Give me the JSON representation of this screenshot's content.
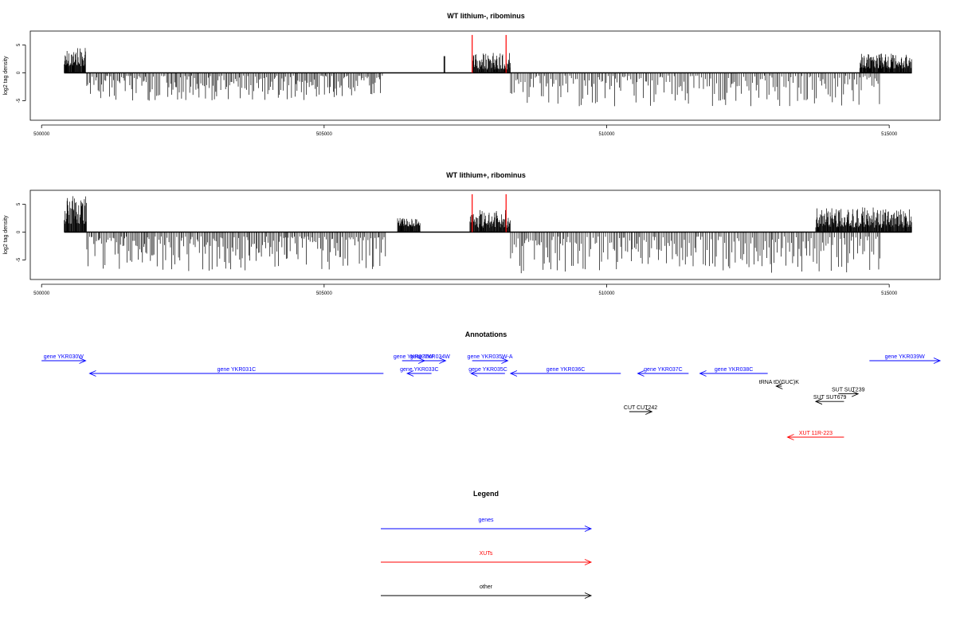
{
  "figure": {
    "annotations_title": "Annotations",
    "legend_title": "Legend"
  },
  "chart_data": [
    {
      "type": "bar",
      "title": "WT lithium-, ribominus",
      "ylabel": "log2 tag density",
      "xlim": [
        499800,
        515900
      ],
      "ylim": [
        -8.5,
        7.5
      ],
      "x_ticks": [
        500000,
        505000,
        510000,
        515000
      ],
      "y_ticks": [
        -5,
        0,
        5
      ],
      "grid": false,
      "highlight_color": "#ff0000",
      "highlight_positions": [
        507620,
        508220
      ],
      "highlight_value": 6.8,
      "series": [
        {
          "start": 500400,
          "end": 500780,
          "min": 1.2,
          "max": 4.5,
          "sign": 1
        },
        {
          "start": 500800,
          "end": 506050,
          "min": 0.5,
          "max": 5.0,
          "sign": -1
        },
        {
          "start": 507120,
          "end": 507140,
          "min": 3.0,
          "max": 3.0,
          "sign": 1
        },
        {
          "start": 507620,
          "end": 508300,
          "min": 0.6,
          "max": 3.7,
          "sign": 1
        },
        {
          "start": 508300,
          "end": 514850,
          "min": 0.5,
          "max": 6.0,
          "sign": -1
        },
        {
          "start": 514480,
          "end": 515400,
          "min": 0.8,
          "max": 3.5,
          "sign": 1
        }
      ]
    },
    {
      "type": "bar",
      "title": "WT lithium+, ribominus",
      "ylabel": "log2 tag density",
      "xlim": [
        499800,
        515900
      ],
      "ylim": [
        -8.5,
        7.5
      ],
      "x_ticks": [
        500000,
        505000,
        510000,
        515000
      ],
      "y_ticks": [
        -5,
        0,
        5
      ],
      "grid": false,
      "highlight_color": "#ff0000",
      "highlight_positions": [
        507620,
        508220
      ],
      "highlight_value": 6.8,
      "series": [
        {
          "start": 500400,
          "end": 500800,
          "min": 1.5,
          "max": 6.5,
          "sign": 1
        },
        {
          "start": 500800,
          "end": 506100,
          "min": 0.8,
          "max": 7.0,
          "sign": -1
        },
        {
          "start": 506300,
          "end": 506700,
          "min": 1.0,
          "max": 2.6,
          "sign": 1
        },
        {
          "start": 507580,
          "end": 508300,
          "min": 0.8,
          "max": 4.0,
          "sign": 1
        },
        {
          "start": 508300,
          "end": 514850,
          "min": 0.8,
          "max": 7.5,
          "sign": -1
        },
        {
          "start": 513700,
          "end": 515400,
          "min": 0.8,
          "max": 4.5,
          "sign": 1
        }
      ]
    }
  ],
  "annotations": [
    {
      "label": "gene YKR030W",
      "from": 500000,
      "to": 500780,
      "color": "#0000ff",
      "row": 0
    },
    {
      "label": "gene YKR031C",
      "from": 506050,
      "to": 500850,
      "color": "#0000ff",
      "row": 1
    },
    {
      "label": "gene YKR032W",
      "from": 506380,
      "to": 506780,
      "color": "#0000ff",
      "row": 0
    },
    {
      "label": "gene YKR034W",
      "from": 506600,
      "to": 507150,
      "color": "#0000ff",
      "row": 0
    },
    {
      "label": "gene YKR033C",
      "from": 506900,
      "to": 506470,
      "color": "#0000ff",
      "row": 1
    },
    {
      "label": "gene YKR035W-A",
      "from": 507620,
      "to": 508250,
      "color": "#0000ff",
      "row": 0
    },
    {
      "label": "gene YKR035C",
      "from": 508200,
      "to": 507600,
      "color": "#0000ff",
      "row": 1
    },
    {
      "label": "gene YKR036C",
      "from": 510250,
      "to": 508300,
      "color": "#0000ff",
      "row": 1
    },
    {
      "label": "gene YKR037C",
      "from": 511450,
      "to": 510550,
      "color": "#0000ff",
      "row": 1
    },
    {
      "label": "gene YKR038C",
      "from": 512850,
      "to": 511650,
      "color": "#0000ff",
      "row": 1
    },
    {
      "label": "gene YKR039W",
      "from": 514650,
      "to": 515900,
      "color": "#0000ff",
      "row": 0
    },
    {
      "label": "tRNA tD(GUC)K",
      "from": 513100,
      "to": 513000,
      "color": "#000000",
      "row": 2
    },
    {
      "label": "SUT SUT239",
      "from": 514100,
      "to": 514450,
      "color": "#000000",
      "row": 2.6
    },
    {
      "label": "SUT SUT679",
      "from": 514200,
      "to": 513700,
      "color": "#000000",
      "row": 3.2
    },
    {
      "label": "CUT CUT242",
      "from": 510400,
      "to": 510800,
      "color": "#000000",
      "row": 4
    },
    {
      "label": "XUT 11R-223",
      "from": 514200,
      "to": 513200,
      "color": "#ff0000",
      "row": 6
    }
  ],
  "legend": [
    {
      "label": "genes",
      "color": "#0000ff"
    },
    {
      "label": "XUTs",
      "color": "#ff0000"
    },
    {
      "label": "other",
      "color": "#000000"
    }
  ]
}
